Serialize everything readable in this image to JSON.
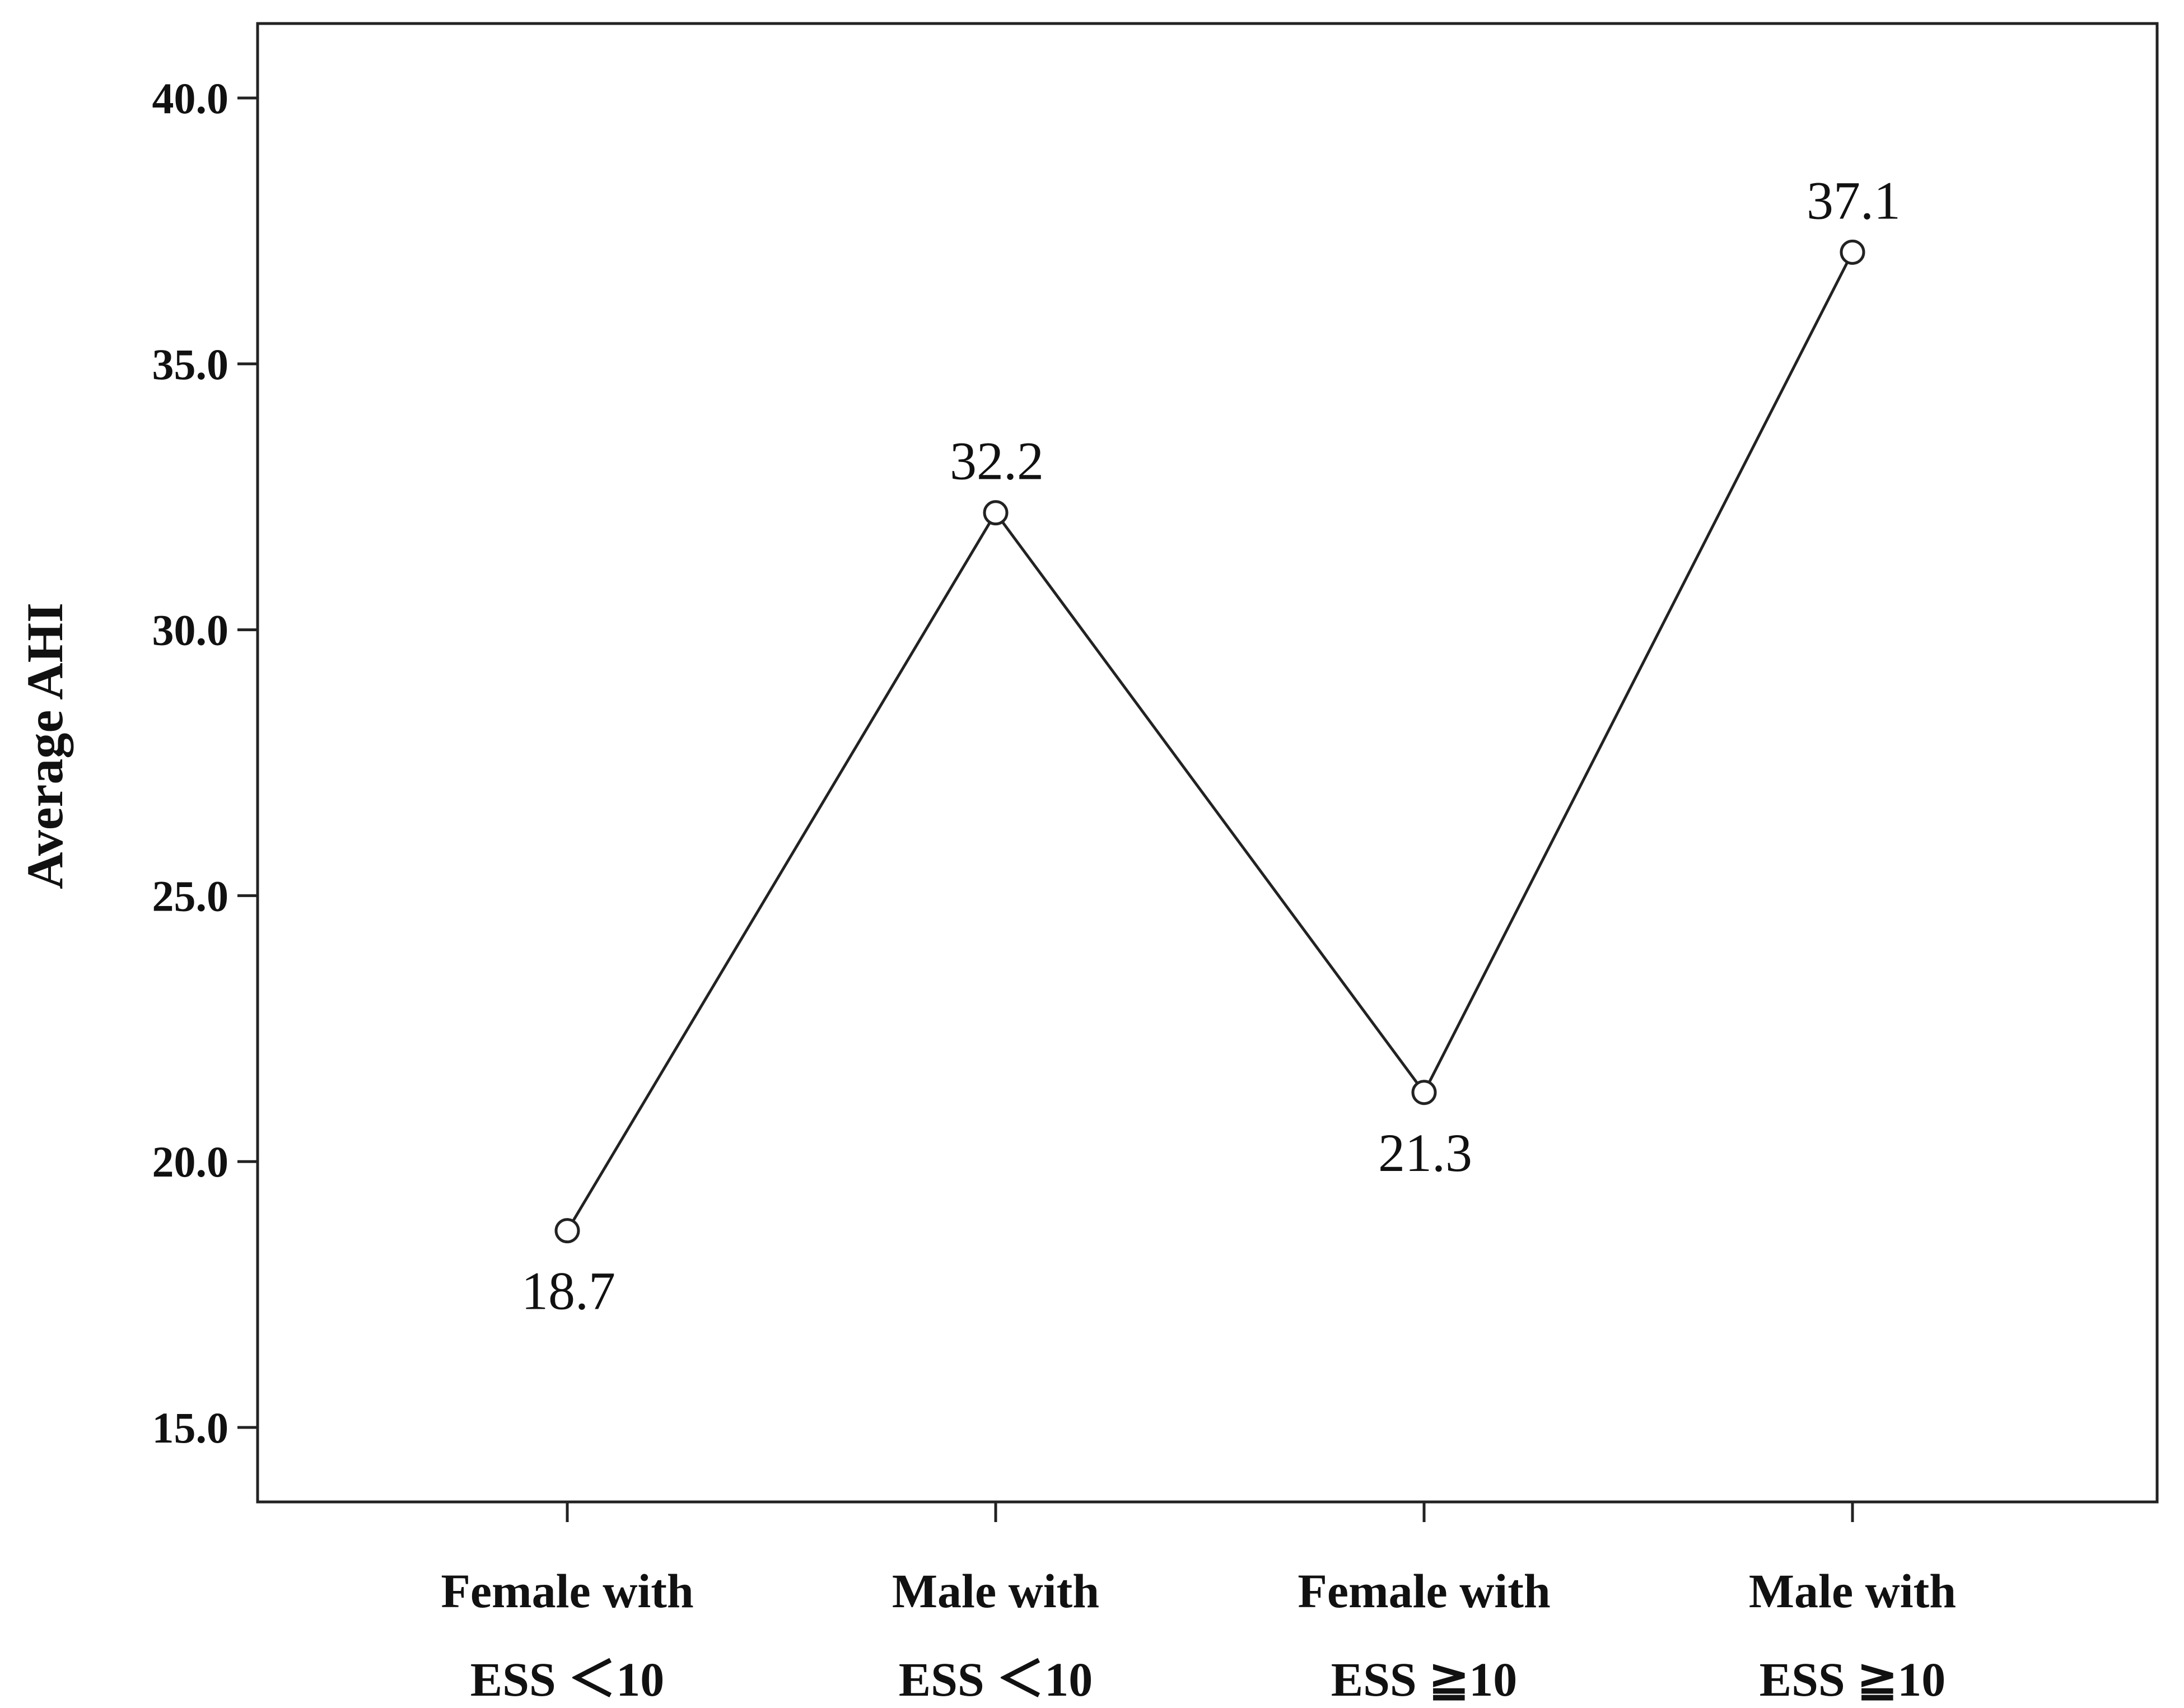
{
  "chart_data": {
    "type": "line",
    "title": "",
    "xlabel": "",
    "ylabel": "Average AHI",
    "ylim": [
      13.6,
      41.4
    ],
    "yticks": [
      "15.0",
      "20.0",
      "25.0",
      "30.0",
      "35.0",
      "40.0"
    ],
    "categories": [
      [
        "Female with",
        "ESS ＜10"
      ],
      [
        "Male with",
        "ESS ＜10"
      ],
      [
        "Female with",
        "ESS ≧10"
      ],
      [
        "Male with",
        "ESS ≧10"
      ]
    ],
    "series": [
      {
        "values": [
          18.7,
          32.2,
          21.3,
          37.1
        ],
        "data_labels": [
          "18.7",
          "32.2",
          "21.3",
          "37.1"
        ],
        "label_positions": [
          "below",
          "above",
          "below",
          "above"
        ],
        "color": "#222222",
        "marker": "open-circle"
      }
    ],
    "grid": false,
    "legend": "none"
  }
}
